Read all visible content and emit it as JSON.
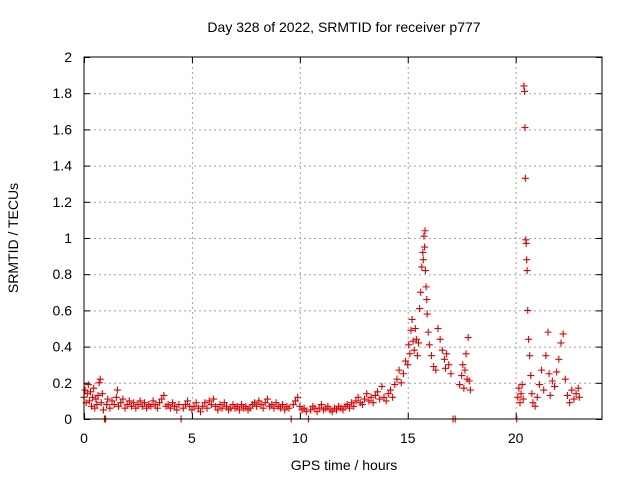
{
  "chart_data": {
    "type": "scatter",
    "title": "Day 328 of 2022, SRMTID for receiver p777",
    "xlabel": "GPS time / hours",
    "ylabel": "SRMTID / TECUs",
    "xlim": [
      0,
      24
    ],
    "ylim": [
      0,
      2
    ],
    "xticks": [
      0,
      5,
      10,
      15,
      20
    ],
    "xtick_labels": [
      "0",
      "5",
      "10",
      "15",
      "20"
    ],
    "yticks": [
      0,
      0.2,
      0.4,
      0.6,
      0.8,
      1.0,
      1.2,
      1.4,
      1.6,
      1.8,
      2.0
    ],
    "ytick_labels": [
      "0",
      "0.2",
      "0.4",
      "0.6",
      "0.8",
      "1",
      "1.2",
      "1.4",
      "1.6",
      "1.8",
      "2"
    ],
    "grid": true,
    "marker": "+",
    "series_color": "#e00000",
    "series": [
      {
        "name": "SRMTID",
        "points": [
          [
            0.0,
            0.12
          ],
          [
            0.05,
            0.16
          ],
          [
            0.1,
            0.09
          ],
          [
            0.15,
            0.14
          ],
          [
            0.2,
            0.19
          ],
          [
            0.25,
            0.1
          ],
          [
            0.3,
            0.15
          ],
          [
            0.35,
            0.07
          ],
          [
            0.4,
            0.12
          ],
          [
            0.45,
            0.17
          ],
          [
            0.5,
            0.06
          ],
          [
            0.55,
            0.11
          ],
          [
            0.6,
            0.08
          ],
          [
            0.65,
            0.13
          ],
          [
            0.7,
            0.2
          ],
          [
            0.75,
            0.22
          ],
          [
            0.8,
            0.09
          ],
          [
            0.85,
            0.14
          ],
          [
            0.9,
            0.05
          ],
          [
            0.95,
            0.0
          ],
          [
            1.0,
            0.0
          ],
          [
            1.05,
            0.08
          ],
          [
            1.1,
            0.11
          ],
          [
            1.2,
            0.06
          ],
          [
            1.3,
            0.1
          ],
          [
            1.4,
            0.08
          ],
          [
            1.5,
            0.12
          ],
          [
            1.55,
            0.16
          ],
          [
            1.6,
            0.07
          ],
          [
            1.7,
            0.09
          ],
          [
            1.8,
            0.11
          ],
          [
            1.9,
            0.06
          ],
          [
            2.0,
            0.08
          ],
          [
            2.1,
            0.1
          ],
          [
            2.2,
            0.07
          ],
          [
            2.3,
            0.09
          ],
          [
            2.4,
            0.06
          ],
          [
            2.5,
            0.08
          ],
          [
            2.6,
            0.1
          ],
          [
            2.7,
            0.07
          ],
          [
            2.8,
            0.09
          ],
          [
            2.9,
            0.06
          ],
          [
            3.0,
            0.08
          ],
          [
            3.1,
            0.07
          ],
          [
            3.2,
            0.1
          ],
          [
            3.3,
            0.08
          ],
          [
            3.4,
            0.06
          ],
          [
            3.5,
            0.09
          ],
          [
            3.6,
            0.11
          ],
          [
            3.7,
            0.13
          ],
          [
            3.8,
            0.07
          ],
          [
            3.9,
            0.08
          ],
          [
            4.0,
            0.06
          ],
          [
            4.1,
            0.09
          ],
          [
            4.2,
            0.07
          ],
          [
            4.3,
            0.05
          ],
          [
            4.4,
            0.08
          ],
          [
            4.5,
            0.0
          ],
          [
            4.6,
            0.06
          ],
          [
            4.7,
            0.08
          ],
          [
            4.8,
            0.1
          ],
          [
            4.9,
            0.07
          ],
          [
            5.0,
            0.05
          ],
          [
            5.1,
            0.07
          ],
          [
            5.2,
            0.09
          ],
          [
            5.3,
            0.06
          ],
          [
            5.4,
            0.04
          ],
          [
            5.5,
            0.07
          ],
          [
            5.6,
            0.09
          ],
          [
            5.7,
            0.06
          ],
          [
            5.8,
            0.1
          ],
          [
            5.9,
            0.08
          ],
          [
            6.0,
            0.11
          ],
          [
            6.1,
            0.07
          ],
          [
            6.2,
            0.05
          ],
          [
            6.3,
            0.08
          ],
          [
            6.4,
            0.06
          ],
          [
            6.5,
            0.09
          ],
          [
            6.6,
            0.07
          ],
          [
            6.7,
            0.05
          ],
          [
            6.8,
            0.06
          ],
          [
            6.9,
            0.08
          ],
          [
            7.0,
            0.06
          ],
          [
            7.1,
            0.07
          ],
          [
            7.2,
            0.05
          ],
          [
            7.3,
            0.08
          ],
          [
            7.4,
            0.06
          ],
          [
            7.5,
            0.07
          ],
          [
            7.6,
            0.05
          ],
          [
            7.7,
            0.06
          ],
          [
            7.8,
            0.08
          ],
          [
            7.9,
            0.09
          ],
          [
            8.0,
            0.07
          ],
          [
            8.1,
            0.1
          ],
          [
            8.2,
            0.08
          ],
          [
            8.3,
            0.06
          ],
          [
            8.4,
            0.09
          ],
          [
            8.5,
            0.11
          ],
          [
            8.6,
            0.07
          ],
          [
            8.7,
            0.08
          ],
          [
            8.8,
            0.06
          ],
          [
            8.9,
            0.09
          ],
          [
            9.0,
            0.07
          ],
          [
            9.1,
            0.06
          ],
          [
            9.2,
            0.08
          ],
          [
            9.3,
            0.05
          ],
          [
            9.4,
            0.07
          ],
          [
            9.5,
            0.06
          ],
          [
            9.6,
            0.0
          ],
          [
            9.7,
            0.08
          ],
          [
            9.8,
            0.1
          ],
          [
            9.9,
            0.12
          ],
          [
            10.0,
            0.07
          ],
          [
            10.1,
            0.05
          ],
          [
            10.2,
            0.06
          ],
          [
            10.3,
            0.04
          ],
          [
            10.4,
            0.0
          ],
          [
            10.5,
            0.05
          ],
          [
            10.6,
            0.07
          ],
          [
            10.7,
            0.06
          ],
          [
            10.8,
            0.04
          ],
          [
            10.9,
            0.06
          ],
          [
            11.0,
            0.08
          ],
          [
            11.1,
            0.05
          ],
          [
            11.2,
            0.06
          ],
          [
            11.3,
            0.07
          ],
          [
            11.4,
            0.05
          ],
          [
            11.5,
            0.04
          ],
          [
            11.6,
            0.06
          ],
          [
            11.7,
            0.05
          ],
          [
            11.8,
            0.07
          ],
          [
            11.9,
            0.06
          ],
          [
            12.0,
            0.05
          ],
          [
            12.1,
            0.07
          ],
          [
            12.2,
            0.08
          ],
          [
            12.3,
            0.06
          ],
          [
            12.4,
            0.09
          ],
          [
            12.5,
            0.07
          ],
          [
            12.6,
            0.1
          ],
          [
            12.7,
            0.12
          ],
          [
            12.8,
            0.09
          ],
          [
            12.9,
            0.08
          ],
          [
            13.0,
            0.11
          ],
          [
            13.1,
            0.14
          ],
          [
            13.2,
            0.1
          ],
          [
            13.3,
            0.12
          ],
          [
            13.4,
            0.09
          ],
          [
            13.5,
            0.13
          ],
          [
            13.6,
            0.15
          ],
          [
            13.7,
            0.11
          ],
          [
            13.8,
            0.18
          ],
          [
            13.9,
            0.12
          ],
          [
            14.0,
            0.1
          ],
          [
            14.1,
            0.14
          ],
          [
            14.2,
            0.16
          ],
          [
            14.3,
            0.12
          ],
          [
            14.4,
            0.19
          ],
          [
            14.5,
            0.22
          ],
          [
            14.6,
            0.27
          ],
          [
            14.7,
            0.2
          ],
          [
            14.8,
            0.25
          ],
          [
            14.9,
            0.32
          ],
          [
            15.0,
            0.3
          ],
          [
            15.05,
            0.41
          ],
          [
            15.1,
            0.36
          ],
          [
            15.15,
            0.49
          ],
          [
            15.2,
            0.55
          ],
          [
            15.25,
            0.43
          ],
          [
            15.3,
            0.38
          ],
          [
            15.35,
            0.5
          ],
          [
            15.4,
            0.44
          ],
          [
            15.45,
            0.35
          ],
          [
            15.5,
            0.42
          ],
          [
            15.55,
            0.61
          ],
          [
            15.6,
            0.7
          ],
          [
            15.65,
            0.84
          ],
          [
            15.7,
            0.92
          ],
          [
            15.72,
            0.88
          ],
          [
            15.75,
            1.01
          ],
          [
            15.78,
            0.95
          ],
          [
            15.8,
            1.04
          ],
          [
            15.82,
            0.82
          ],
          [
            15.85,
            0.73
          ],
          [
            15.88,
            0.66
          ],
          [
            15.9,
            0.58
          ],
          [
            15.95,
            0.48
          ],
          [
            16.0,
            0.41
          ],
          [
            16.1,
            0.35
          ],
          [
            16.2,
            0.29
          ],
          [
            16.3,
            0.27
          ],
          [
            16.4,
            0.5
          ],
          [
            16.5,
            0.44
          ],
          [
            16.6,
            0.38
          ],
          [
            16.7,
            0.33
          ],
          [
            16.75,
            0.28
          ],
          [
            16.8,
            0.36
          ],
          [
            16.9,
            0.3
          ],
          [
            17.0,
            0.25
          ],
          [
            17.1,
            0.0
          ],
          [
            17.2,
            0.0
          ],
          [
            17.4,
            0.19
          ],
          [
            17.5,
            0.24
          ],
          [
            17.55,
            0.3
          ],
          [
            17.6,
            0.17
          ],
          [
            17.65,
            0.27
          ],
          [
            17.7,
            0.36
          ],
          [
            17.75,
            0.22
          ],
          [
            17.8,
            0.45
          ],
          [
            17.85,
            0.21
          ],
          [
            17.9,
            0.16
          ],
          [
            20.05,
            0.0
          ],
          [
            20.1,
            0.12
          ],
          [
            20.15,
            0.17
          ],
          [
            20.2,
            0.09
          ],
          [
            20.25,
            0.14
          ],
          [
            20.3,
            0.19
          ],
          [
            20.35,
            0.11
          ],
          [
            20.38,
            1.84
          ],
          [
            20.41,
            1.81
          ],
          [
            20.43,
            1.61
          ],
          [
            20.45,
            1.33
          ],
          [
            20.47,
            0.99
          ],
          [
            20.49,
            0.97
          ],
          [
            20.51,
            0.88
          ],
          [
            20.53,
            0.82
          ],
          [
            20.56,
            0.6
          ],
          [
            20.6,
            0.44
          ],
          [
            20.65,
            0.35
          ],
          [
            20.7,
            0.24
          ],
          [
            20.75,
            0.14
          ],
          [
            20.8,
            0.09
          ],
          [
            20.9,
            0.07
          ],
          [
            21.0,
            0.12
          ],
          [
            21.1,
            0.19
          ],
          [
            21.2,
            0.27
          ],
          [
            21.3,
            0.16
          ],
          [
            21.4,
            0.35
          ],
          [
            21.5,
            0.48
          ],
          [
            21.55,
            0.25
          ],
          [
            21.6,
            0.13
          ],
          [
            21.7,
            0.21
          ],
          [
            21.8,
            0.18
          ],
          [
            21.9,
            0.26
          ],
          [
            22.0,
            0.33
          ],
          [
            22.1,
            0.42
          ],
          [
            22.2,
            0.47
          ],
          [
            22.3,
            0.22
          ],
          [
            22.4,
            0.13
          ],
          [
            22.5,
            0.09
          ],
          [
            22.6,
            0.16
          ],
          [
            22.7,
            0.11
          ],
          [
            22.8,
            0.14
          ],
          [
            22.9,
            0.17
          ],
          [
            22.95,
            0.12
          ]
        ]
      }
    ]
  }
}
